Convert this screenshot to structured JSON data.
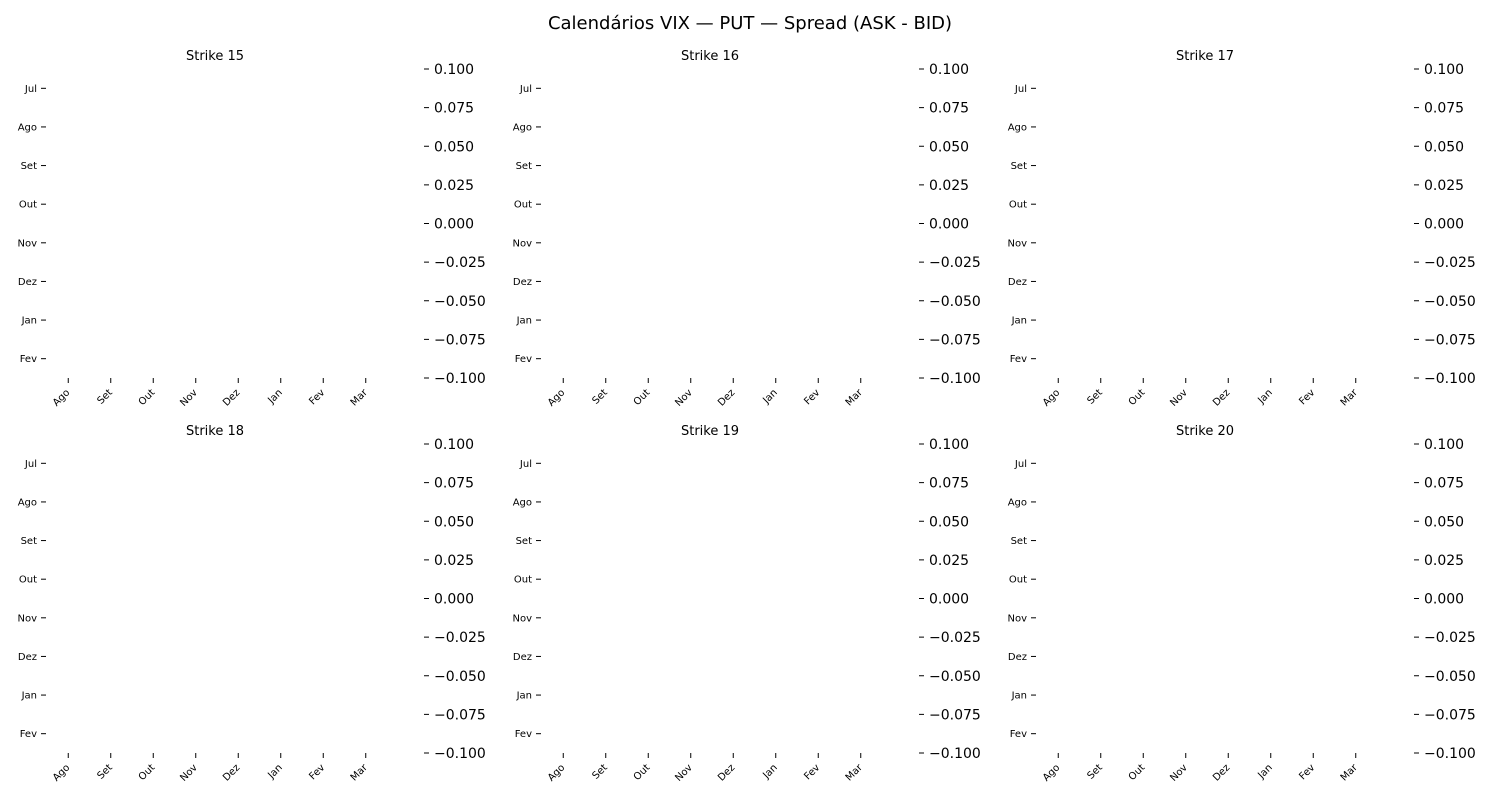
{
  "figure": {
    "title": "Calendários VIX — PUT — Spread (ASK - BID)"
  },
  "chart_data": {
    "type": "heatmap",
    "layout": "grid 2x3",
    "panels": [
      {
        "title": "Strike 15",
        "rows": [
          "Jul",
          "Ago",
          "Set",
          "Out",
          "Nov",
          "Dez",
          "Jan",
          "Fev"
        ],
        "cols": [
          "Ago",
          "Set",
          "Out",
          "Nov",
          "Dez",
          "Jan",
          "Fev",
          "Mar"
        ],
        "values": [],
        "colorbar": {
          "ticks": [
            "0.100",
            "0.075",
            "0.050",
            "0.025",
            "0.000",
            "−0.025",
            "−0.050",
            "−0.075",
            "−0.100"
          ],
          "range": [
            -0.1,
            0.1
          ]
        }
      },
      {
        "title": "Strike 16",
        "rows": [
          "Jul",
          "Ago",
          "Set",
          "Out",
          "Nov",
          "Dez",
          "Jan",
          "Fev"
        ],
        "cols": [
          "Ago",
          "Set",
          "Out",
          "Nov",
          "Dez",
          "Jan",
          "Fev",
          "Mar"
        ],
        "values": [],
        "colorbar": {
          "ticks": [
            "0.100",
            "0.075",
            "0.050",
            "0.025",
            "0.000",
            "−0.025",
            "−0.050",
            "−0.075",
            "−0.100"
          ],
          "range": [
            -0.1,
            0.1
          ]
        }
      },
      {
        "title": "Strike 17",
        "rows": [
          "Jul",
          "Ago",
          "Set",
          "Out",
          "Nov",
          "Dez",
          "Jan",
          "Fev"
        ],
        "cols": [
          "Ago",
          "Set",
          "Out",
          "Nov",
          "Dez",
          "Jan",
          "Fev",
          "Mar"
        ],
        "values": [],
        "colorbar": {
          "ticks": [
            "0.100",
            "0.075",
            "0.050",
            "0.025",
            "0.000",
            "−0.025",
            "−0.050",
            "−0.075",
            "−0.100"
          ],
          "range": [
            -0.1,
            0.1
          ]
        }
      },
      {
        "title": "Strike 18",
        "rows": [
          "Jul",
          "Ago",
          "Set",
          "Out",
          "Nov",
          "Dez",
          "Jan",
          "Fev"
        ],
        "cols": [
          "Ago",
          "Set",
          "Out",
          "Nov",
          "Dez",
          "Jan",
          "Fev",
          "Mar"
        ],
        "values": [],
        "colorbar": {
          "ticks": [
            "0.100",
            "0.075",
            "0.050",
            "0.025",
            "0.000",
            "−0.025",
            "−0.050",
            "−0.075",
            "−0.100"
          ],
          "range": [
            -0.1,
            0.1
          ]
        }
      },
      {
        "title": "Strike 19",
        "rows": [
          "Jul",
          "Ago",
          "Set",
          "Out",
          "Nov",
          "Dez",
          "Jan",
          "Fev"
        ],
        "cols": [
          "Ago",
          "Set",
          "Out",
          "Nov",
          "Dez",
          "Jan",
          "Fev",
          "Mar"
        ],
        "values": [],
        "colorbar": {
          "ticks": [
            "0.100",
            "0.075",
            "0.050",
            "0.025",
            "0.000",
            "−0.025",
            "−0.050",
            "−0.075",
            "−0.100"
          ],
          "range": [
            -0.1,
            0.1
          ]
        }
      },
      {
        "title": "Strike 20",
        "rows": [
          "Jul",
          "Ago",
          "Set",
          "Out",
          "Nov",
          "Dez",
          "Jan",
          "Fev"
        ],
        "cols": [
          "Ago",
          "Set",
          "Out",
          "Nov",
          "Dez",
          "Jan",
          "Fev",
          "Mar"
        ],
        "values": [],
        "colorbar": {
          "ticks": [
            "0.100",
            "0.075",
            "0.050",
            "0.025",
            "0.000",
            "−0.025",
            "−0.050",
            "−0.075",
            "−0.100"
          ],
          "range": [
            -0.1,
            0.1
          ]
        }
      }
    ]
  }
}
